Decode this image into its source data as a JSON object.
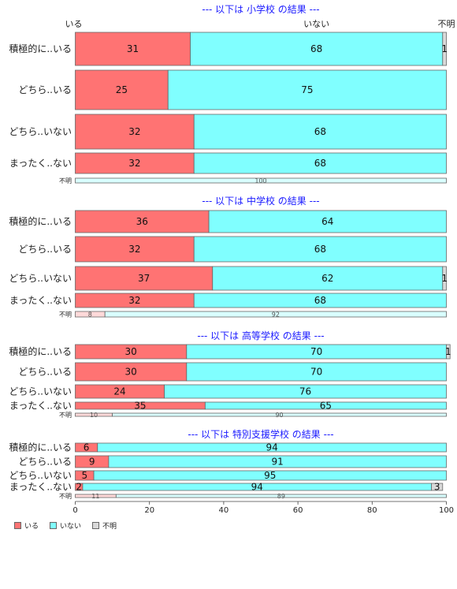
{
  "chart_data": {
    "type": "bar",
    "orientation": "horizontal",
    "stacked": true,
    "percent": true,
    "column_labels": [
      "いる",
      "いない",
      "不明"
    ],
    "colors": {
      "いる": "#ff7373",
      "いない": "#80ffff",
      "不明": "#d9d9d9"
    },
    "unknown_row_colors": {
      "いる": "#ffd9d9",
      "いない": "#d9ffff",
      "不明": "#eeeeee"
    },
    "xlim": [
      0,
      100
    ],
    "x_ticks": [
      0,
      20,
      40,
      60,
      80,
      100
    ],
    "panels": [
      {
        "title": "--- 以下は 小学校 の結果 ---",
        "show_column_labels": true,
        "rows": [
          {
            "label": "積極的に..いる",
            "values": [
              31,
              68,
              1
            ],
            "labels": [
              "31",
              "68",
              "1"
            ]
          },
          {
            "label": "どちら..いる",
            "values": [
              25,
              75,
              0
            ],
            "labels": [
              "25",
              "75",
              ""
            ]
          },
          {
            "label": "どちら..いない",
            "values": [
              32,
              68,
              0
            ],
            "labels": [
              "32",
              "68",
              ""
            ]
          },
          {
            "label": "まったく..ない",
            "values": [
              32,
              68,
              0
            ],
            "labels": [
              "32",
              "68",
              ""
            ]
          },
          {
            "label": "不明",
            "values": [
              0,
              100,
              0
            ],
            "labels": [
              "",
              "100",
              ""
            ],
            "small": true
          }
        ]
      },
      {
        "title": "--- 以下は 中学校 の結果 ---",
        "show_column_labels": false,
        "rows": [
          {
            "label": "積極的に..いる",
            "values": [
              36,
              64,
              0
            ],
            "labels": [
              "36",
              "64",
              ""
            ]
          },
          {
            "label": "どちら..いる",
            "values": [
              32,
              68,
              0
            ],
            "labels": [
              "32",
              "68",
              ""
            ]
          },
          {
            "label": "どちら..いない",
            "values": [
              37,
              62,
              1
            ],
            "labels": [
              "37",
              "62",
              "1"
            ]
          },
          {
            "label": "まったく..ない",
            "values": [
              32,
              68,
              0
            ],
            "labels": [
              "32",
              "68",
              ""
            ]
          },
          {
            "label": "不明",
            "values": [
              8,
              92,
              0
            ],
            "labels": [
              "8",
              "92",
              ""
            ],
            "small": true
          }
        ]
      },
      {
        "title": "--- 以下は 高等学校 の結果 ---",
        "show_column_labels": false,
        "rows": [
          {
            "label": "積極的に..いる",
            "values": [
              30,
              70,
              1
            ],
            "labels": [
              "30",
              "70",
              "1"
            ]
          },
          {
            "label": "どちら..いる",
            "values": [
              30,
              70,
              0
            ],
            "labels": [
              "30",
              "70",
              ""
            ]
          },
          {
            "label": "どちら..いない",
            "values": [
              24,
              76,
              0
            ],
            "labels": [
              "24",
              "76",
              ""
            ]
          },
          {
            "label": "まったく..ない",
            "values": [
              35,
              65,
              0
            ],
            "labels": [
              "35",
              "65",
              ""
            ]
          },
          {
            "label": "不明",
            "values": [
              10,
              90,
              0
            ],
            "labels": [
              "10",
              "90",
              ""
            ],
            "small": true
          }
        ]
      },
      {
        "title": "--- 以下は 特別支援学校 の結果 ---",
        "show_column_labels": false,
        "rows": [
          {
            "label": "積極的に..いる",
            "values": [
              6,
              94,
              0
            ],
            "labels": [
              "6",
              "94",
              ""
            ]
          },
          {
            "label": "どちら..いる",
            "values": [
              9,
              91,
              0
            ],
            "labels": [
              "9",
              "91",
              ""
            ]
          },
          {
            "label": "どちら..いない",
            "values": [
              5,
              95,
              0
            ],
            "labels": [
              "5",
              "95",
              ""
            ]
          },
          {
            "label": "まったく..ない",
            "values": [
              2,
              94,
              3
            ],
            "labels": [
              "2",
              "94",
              "3"
            ]
          },
          {
            "label": "不明",
            "values": [
              11,
              89,
              0
            ],
            "labels": [
              "11",
              "89",
              ""
            ],
            "small": true
          }
        ]
      }
    ],
    "legend": {
      "position": "bottom-left",
      "entries": [
        "いる",
        "いない",
        "不明"
      ]
    }
  }
}
